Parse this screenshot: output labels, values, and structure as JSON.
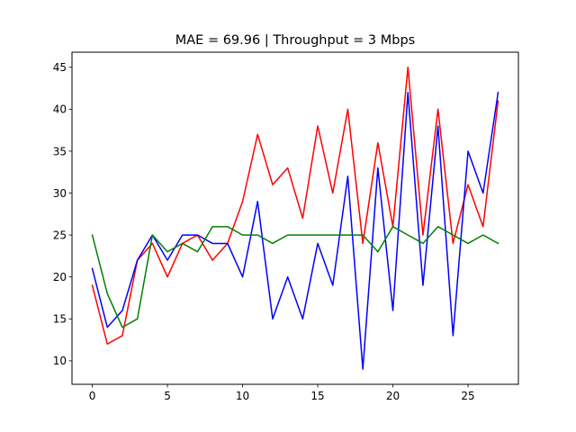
{
  "chart_data": {
    "type": "line",
    "title": "MAE = 69.96 | Throughput = 3 Mbps",
    "xlabel": "",
    "ylabel": "",
    "xlim": [
      -1.35,
      28.35
    ],
    "ylim": [
      7.2,
      46.8
    ],
    "xticks": [
      0,
      5,
      10,
      15,
      20,
      25
    ],
    "yticks": [
      10,
      15,
      20,
      25,
      30,
      35,
      40,
      45
    ],
    "grid": false,
    "legend": "none",
    "x": [
      0,
      1,
      2,
      3,
      4,
      5,
      6,
      7,
      8,
      9,
      10,
      11,
      12,
      13,
      14,
      15,
      16,
      17,
      18,
      19,
      20,
      21,
      22,
      23,
      24,
      25,
      26,
      27
    ],
    "series": [
      {
        "color": "#ff0000",
        "values": [
          19,
          12,
          13,
          22,
          24,
          20,
          24,
          25,
          22,
          24,
          29,
          37,
          31,
          33,
          27,
          38,
          30,
          40,
          24,
          36,
          26,
          45,
          25,
          40,
          24,
          31,
          26,
          41
        ]
      },
      {
        "color": "#0000ff",
        "values": [
          21,
          14,
          16,
          22,
          25,
          22,
          25,
          25,
          24,
          24,
          20,
          29,
          15,
          20,
          15,
          24,
          19,
          32,
          9,
          33,
          16,
          42,
          19,
          38,
          13,
          35,
          30,
          42
        ]
      },
      {
        "color": "#008000",
        "values": [
          25,
          18,
          14,
          15,
          25,
          23,
          24,
          23,
          26,
          26,
          25,
          25,
          24,
          25,
          25,
          25,
          25,
          25,
          25,
          23,
          26,
          25,
          24,
          26,
          25,
          24,
          25,
          24
        ]
      }
    ]
  }
}
